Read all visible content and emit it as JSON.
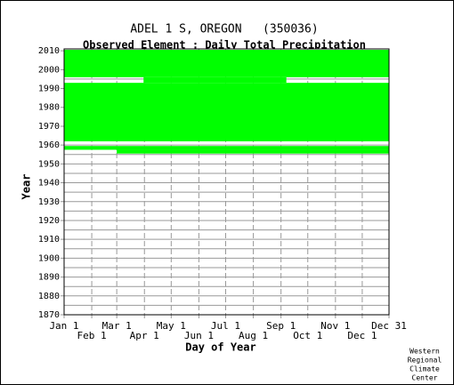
{
  "chart_data": {
    "type": "availability",
    "title": "ADEL 1 S, OREGON   (350036)",
    "subtitle": "Observed Element : Daily Total Precipitation",
    "y_label": "Year",
    "x_label": "Day of Year",
    "credit": [
      "Western",
      "Regional",
      "Climate",
      "Center"
    ],
    "color": "#00ff00",
    "xlim": [
      1,
      365
    ],
    "ylim": [
      1870,
      2011
    ],
    "xticks": [
      {
        "value": 1,
        "label": "Jan 1"
      },
      {
        "value": 32,
        "label": "Feb 1"
      },
      {
        "value": 60,
        "label": "Mar 1"
      },
      {
        "value": 91,
        "label": "Apr 1"
      },
      {
        "value": 121,
        "label": "May 1"
      },
      {
        "value": 152,
        "label": "Jun 1"
      },
      {
        "value": 182,
        "label": "Jul 1"
      },
      {
        "value": 213,
        "label": "Aug 1"
      },
      {
        "value": 244,
        "label": "Sep 1"
      },
      {
        "value": 274,
        "label": "Oct 1"
      },
      {
        "value": 305,
        "label": "Nov 1"
      },
      {
        "value": 335,
        "label": "Dec 1"
      },
      {
        "value": 365,
        "label": "Dec 31"
      }
    ],
    "yticks": [
      1870,
      1880,
      1890,
      1900,
      1910,
      1920,
      1930,
      1940,
      1950,
      1960,
      1970,
      1980,
      1990,
      2000,
      2010
    ],
    "y_minor_ticks": [
      1875,
      1885,
      1895,
      1905,
      1915,
      1925,
      1935,
      1945,
      1955,
      1965,
      1975,
      1985,
      1995,
      2005
    ],
    "segments": [
      {
        "year_from": 1962,
        "year_to": 1993,
        "day_from": 1,
        "day_to": 365
      },
      {
        "year_from": 1993,
        "year_to": 1996,
        "day_from": 90,
        "day_to": 250
      },
      {
        "year_from": 1996,
        "year_to": 2010.5,
        "day_from": 1,
        "day_to": 365
      },
      {
        "year_from": 1957.5,
        "year_to": 1959.5,
        "day_from": 1,
        "day_to": 365
      },
      {
        "year_from": 1955.5,
        "year_to": 1957.5,
        "day_from": 60,
        "day_to": 365
      }
    ]
  }
}
